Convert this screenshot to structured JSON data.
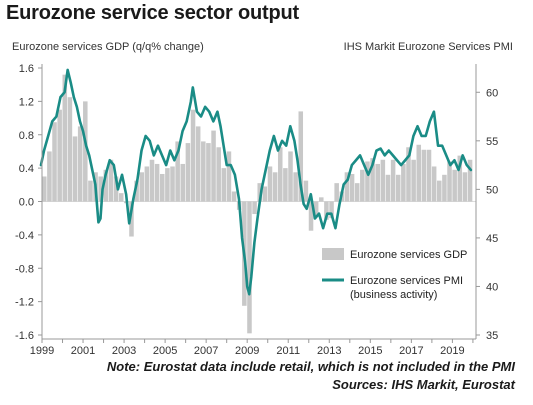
{
  "header": {
    "title": "Eurozone service sector output",
    "left_axis_title": "Eurozone services GDP (q/q% change)",
    "right_axis_title": "IHS Markit Eurozone Services PMI"
  },
  "footer": {
    "note": "Note: Eurostat data include retail, which is not included in the PMI",
    "sources": "Sources: IHS Markit, Eurostat"
  },
  "colors": {
    "bar": "#c8c8c8",
    "line": "#1a8c86",
    "axis": "#999999"
  },
  "chart_data": {
    "type": "bar+line",
    "x_tick_labels": [
      "1999",
      "2001",
      "2003",
      "2005",
      "2007",
      "2009",
      "2011",
      "2013",
      "2015",
      "2017",
      "2019"
    ],
    "left_axis": {
      "ticks": [
        1.6,
        1.2,
        0.8,
        0.4,
        0.0,
        -0.4,
        -0.8,
        -1.2,
        -1.6
      ],
      "tick_labels": [
        "1.6",
        "1.2",
        "0.8",
        "0.4",
        "0.0",
        "-0.4",
        "-0.8",
        "-1.2",
        "-1.6"
      ],
      "ylim": [
        -1.6,
        1.6
      ]
    },
    "right_axis": {
      "ticks": [
        60,
        55,
        50,
        45,
        40,
        35
      ],
      "tick_labels": [
        "60",
        "55",
        "50",
        "45",
        "40",
        "35"
      ],
      "ylim": [
        35,
        62.5
      ]
    },
    "series": [
      {
        "name": "Eurozone services GDP",
        "kind": "bar",
        "axis": "left",
        "categories": [
          "1999Q1",
          "1999Q2",
          "1999Q3",
          "1999Q4",
          "2000Q1",
          "2000Q2",
          "2000Q3",
          "2000Q4",
          "2001Q1",
          "2001Q2",
          "2001Q3",
          "2001Q4",
          "2002Q1",
          "2002Q2",
          "2002Q3",
          "2002Q4",
          "2003Q1",
          "2003Q2",
          "2003Q3",
          "2003Q4",
          "2004Q1",
          "2004Q2",
          "2004Q3",
          "2004Q4",
          "2005Q1",
          "2005Q2",
          "2005Q3",
          "2005Q4",
          "2006Q1",
          "2006Q2",
          "2006Q3",
          "2006Q4",
          "2007Q1",
          "2007Q2",
          "2007Q3",
          "2007Q4",
          "2008Q1",
          "2008Q2",
          "2008Q3",
          "2008Q4",
          "2009Q1",
          "2009Q2",
          "2009Q3",
          "2009Q4",
          "2010Q1",
          "2010Q2",
          "2010Q3",
          "2010Q4",
          "2011Q1",
          "2011Q2",
          "2011Q3",
          "2011Q4",
          "2012Q1",
          "2012Q2",
          "2012Q3",
          "2012Q4",
          "2013Q1",
          "2013Q2",
          "2013Q3",
          "2013Q4",
          "2014Q1",
          "2014Q2",
          "2014Q3",
          "2014Q4",
          "2015Q1",
          "2015Q2",
          "2015Q3",
          "2015Q4",
          "2016Q1",
          "2016Q2",
          "2016Q3",
          "2016Q4",
          "2017Q1",
          "2017Q2",
          "2017Q3",
          "2017Q4",
          "2018Q1",
          "2018Q2",
          "2018Q3",
          "2018Q4",
          "2019Q1",
          "2019Q2",
          "2019Q3",
          "2019Q4"
        ],
        "values": [
          0.3,
          0.6,
          0.95,
          1.1,
          1.52,
          1.25,
          0.78,
          0.9,
          1.2,
          0.25,
          0.35,
          0.3,
          0.38,
          0.5,
          0.3,
          0.1,
          -0.02,
          -0.42,
          0.25,
          0.35,
          0.42,
          0.5,
          0.45,
          0.33,
          0.4,
          0.42,
          0.72,
          0.45,
          0.7,
          1.1,
          0.9,
          0.72,
          0.7,
          0.85,
          0.65,
          0.4,
          0.6,
          0.12,
          -0.1,
          -1.25,
          -1.58,
          -0.15,
          0.22,
          0.18,
          0.42,
          0.35,
          0.65,
          0.4,
          0.6,
          0.35,
          1.08,
          0.25,
          -0.35,
          -0.18,
          0.05,
          -0.22,
          -0.2,
          0.22,
          0.12,
          0.35,
          0.33,
          0.22,
          0.38,
          0.48,
          0.52,
          0.45,
          0.5,
          0.32,
          0.5,
          0.32,
          0.45,
          0.65,
          0.5,
          0.68,
          0.62,
          0.62,
          0.42,
          0.25,
          0.32,
          0.48,
          0.38,
          0.55,
          0.35,
          0.5
        ]
      },
      {
        "name": "Eurozone services PMI (business activity)",
        "legend_lines": [
          "Eurozone services PMI",
          "(business activity)"
        ],
        "kind": "line",
        "axis": "right",
        "x": [
          1998.95,
          1999.1,
          1999.3,
          1999.5,
          1999.7,
          1999.9,
          2000.1,
          2000.25,
          2000.4,
          2000.55,
          2000.7,
          2000.85,
          2001.0,
          2001.15,
          2001.3,
          2001.45,
          2001.6,
          2001.75,
          2001.85,
          2001.95,
          2002.1,
          2002.3,
          2002.5,
          2002.7,
          2002.9,
          2003.1,
          2003.25,
          2003.45,
          2003.65,
          2003.85,
          2004.05,
          2004.25,
          2004.45,
          2004.65,
          2004.85,
          2005.05,
          2005.25,
          2005.45,
          2005.65,
          2005.85,
          2006.05,
          2006.25,
          2006.35,
          2006.55,
          2006.75,
          2006.95,
          2007.15,
          2007.35,
          2007.55,
          2007.7,
          2007.85,
          2008.0,
          2008.2,
          2008.4,
          2008.6,
          2008.75,
          2008.9,
          2009.0,
          2009.1,
          2009.2,
          2009.35,
          2009.5,
          2009.7,
          2009.9,
          2010.1,
          2010.3,
          2010.5,
          2010.7,
          2010.9,
          2011.1,
          2011.3,
          2011.45,
          2011.6,
          2011.75,
          2011.9,
          2012.1,
          2012.3,
          2012.5,
          2012.7,
          2012.9,
          2013.1,
          2013.3,
          2013.5,
          2013.7,
          2013.9,
          2014.1,
          2014.3,
          2014.5,
          2014.7,
          2014.9,
          2015.1,
          2015.3,
          2015.5,
          2015.7,
          2015.9,
          2016.1,
          2016.3,
          2016.5,
          2016.7,
          2016.9,
          2017.1,
          2017.3,
          2017.5,
          2017.7,
          2017.9,
          2018.1,
          2018.3,
          2018.5,
          2018.7,
          2018.9,
          2019.1,
          2019.3,
          2019.5,
          2019.7,
          2019.9
        ],
        "values": [
          52.5,
          54.0,
          55.5,
          57.0,
          57.5,
          59.5,
          60.0,
          62.3,
          61.0,
          59.5,
          58.5,
          57.0,
          56.0,
          54.5,
          53.5,
          52.0,
          50.5,
          46.6,
          47.0,
          50.0,
          51.5,
          53.0,
          52.5,
          50.0,
          51.5,
          49.5,
          46.5,
          49.0,
          51.0,
          54.0,
          55.5,
          55.0,
          53.5,
          54.5,
          53.5,
          52.5,
          54.0,
          53.0,
          54.0,
          56.0,
          57.0,
          59.0,
          60.5,
          58.0,
          57.5,
          58.5,
          58.0,
          57.0,
          58.0,
          56.5,
          54.5,
          52.5,
          52.5,
          51.5,
          49.0,
          45.0,
          42.5,
          40.0,
          39.2,
          41.0,
          44.5,
          47.0,
          50.0,
          52.0,
          54.0,
          55.5,
          54.0,
          55.0,
          54.5,
          56.5,
          55.0,
          53.0,
          50.5,
          48.5,
          48.0,
          49.5,
          47.0,
          47.5,
          46.0,
          47.5,
          47.5,
          46.0,
          48.5,
          50.5,
          51.0,
          52.5,
          53.0,
          53.5,
          52.5,
          51.5,
          52.5,
          54.0,
          54.2,
          53.5,
          54.0,
          53.5,
          53.0,
          52.5,
          53.0,
          53.5,
          55.5,
          56.5,
          55.5,
          55.5,
          57.0,
          58.0,
          54.5,
          54.5,
          53.5,
          52.5,
          53.0,
          52.0,
          53.5,
          52.5,
          52.0
        ]
      }
    ],
    "legend_position": "bottom-right",
    "grid": false
  }
}
